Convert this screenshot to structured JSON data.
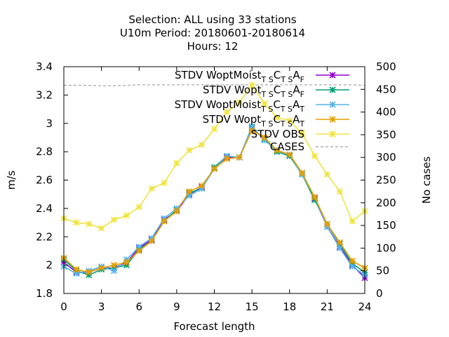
{
  "chart_data": {
    "type": "line",
    "title_lines": [
      "Selection: ALL using    33 stations",
      "U10m   Period: 20180601-20180614",
      "Hours:  12"
    ],
    "xlabel": "Forecast length",
    "ylabel": "m/s",
    "y2label": "No cases",
    "xlim": [
      0,
      24
    ],
    "ylim": [
      1.8,
      3.4
    ],
    "y2lim": [
      0,
      500
    ],
    "x_ticks": [
      0,
      3,
      6,
      9,
      12,
      15,
      18,
      21,
      24
    ],
    "y_ticks": [
      1.8,
      2,
      2.2,
      2.4,
      2.6,
      2.8,
      3,
      3.2,
      3.4
    ],
    "y_tick_labels": [
      "1.8",
      "2",
      "2.2",
      "2.4",
      "2.6",
      "2.8",
      "3",
      "3.2",
      "3.4"
    ],
    "y2_ticks": [
      0,
      50,
      100,
      150,
      200,
      250,
      300,
      350,
      400,
      450,
      500
    ],
    "x": [
      0,
      1,
      2,
      3,
      4,
      5,
      6,
      7,
      8,
      9,
      10,
      11,
      12,
      13,
      14,
      15,
      16,
      17,
      18,
      19,
      20,
      21,
      22,
      23,
      24
    ],
    "legend_position": "top-right",
    "series": [
      {
        "name": "STDV WoptMoist",
        "sub1": "T S",
        "mid": "C",
        "sub2": "T S",
        "end": "A",
        "sub3": "F",
        "color": "#9400d3",
        "axis": "y",
        "values": [
          2.02,
          1.95,
          1.95,
          1.98,
          1.98,
          2.02,
          2.12,
          2.18,
          2.32,
          2.38,
          2.5,
          2.55,
          2.68,
          2.76,
          2.76,
          2.96,
          2.89,
          2.81,
          2.78,
          2.65,
          2.47,
          2.27,
          2.13,
          2.0,
          1.91
        ]
      },
      {
        "name": "STDV Wopt",
        "sub1": "T S",
        "mid": "C",
        "sub2": "T S",
        "end": "A",
        "sub3": "F",
        "color": "#009e73",
        "axis": "y",
        "values": [
          2.04,
          1.96,
          1.93,
          1.97,
          1.98,
          2.0,
          2.11,
          2.17,
          2.31,
          2.39,
          2.51,
          2.54,
          2.69,
          2.77,
          2.76,
          2.97,
          2.89,
          2.8,
          2.77,
          2.64,
          2.46,
          2.29,
          2.15,
          2.01,
          1.95
        ]
      },
      {
        "name": "STDV WoptMoist",
        "sub1": "T S",
        "mid": "C",
        "sub2": "T S",
        "end": "A",
        "sub3": "T",
        "color": "#56b4e9",
        "axis": "y",
        "values": [
          1.99,
          1.94,
          1.96,
          1.99,
          1.96,
          2.04,
          2.13,
          2.19,
          2.33,
          2.4,
          2.49,
          2.54,
          2.68,
          2.77,
          2.76,
          2.98,
          2.88,
          2.81,
          2.78,
          2.64,
          2.48,
          2.27,
          2.12,
          1.99,
          1.93
        ]
      },
      {
        "name": "STDV Wopt",
        "sub1": "T S",
        "mid": "C",
        "sub2": "T S",
        "end": "A",
        "sub3": "T",
        "color": "#e69f00",
        "axis": "y",
        "values": [
          2.05,
          1.97,
          1.95,
          1.98,
          2.0,
          2.02,
          2.1,
          2.17,
          2.31,
          2.38,
          2.52,
          2.56,
          2.68,
          2.75,
          2.76,
          2.95,
          2.9,
          2.81,
          2.78,
          2.65,
          2.48,
          2.29,
          2.16,
          2.03,
          1.98
        ]
      },
      {
        "name": "STDV OBS",
        "color": "#f0e442",
        "axis": "y",
        "values": [
          2.33,
          2.3,
          2.29,
          2.26,
          2.32,
          2.35,
          2.41,
          2.54,
          2.58,
          2.72,
          2.81,
          2.85,
          2.96,
          3.08,
          3.15,
          3.27,
          3.14,
          3.04,
          3.02,
          2.93,
          2.77,
          2.64,
          2.52,
          2.31,
          2.38
        ]
      },
      {
        "name": "CASES",
        "color": "#a0a0a0",
        "axis": "y2",
        "dashed": true,
        "values": [
          459,
          459,
          459,
          458,
          458,
          459,
          460,
          460,
          460,
          460,
          460,
          460,
          460,
          460,
          460,
          460,
          460,
          460,
          460,
          460,
          460,
          460,
          460,
          460,
          459
        ]
      }
    ]
  }
}
